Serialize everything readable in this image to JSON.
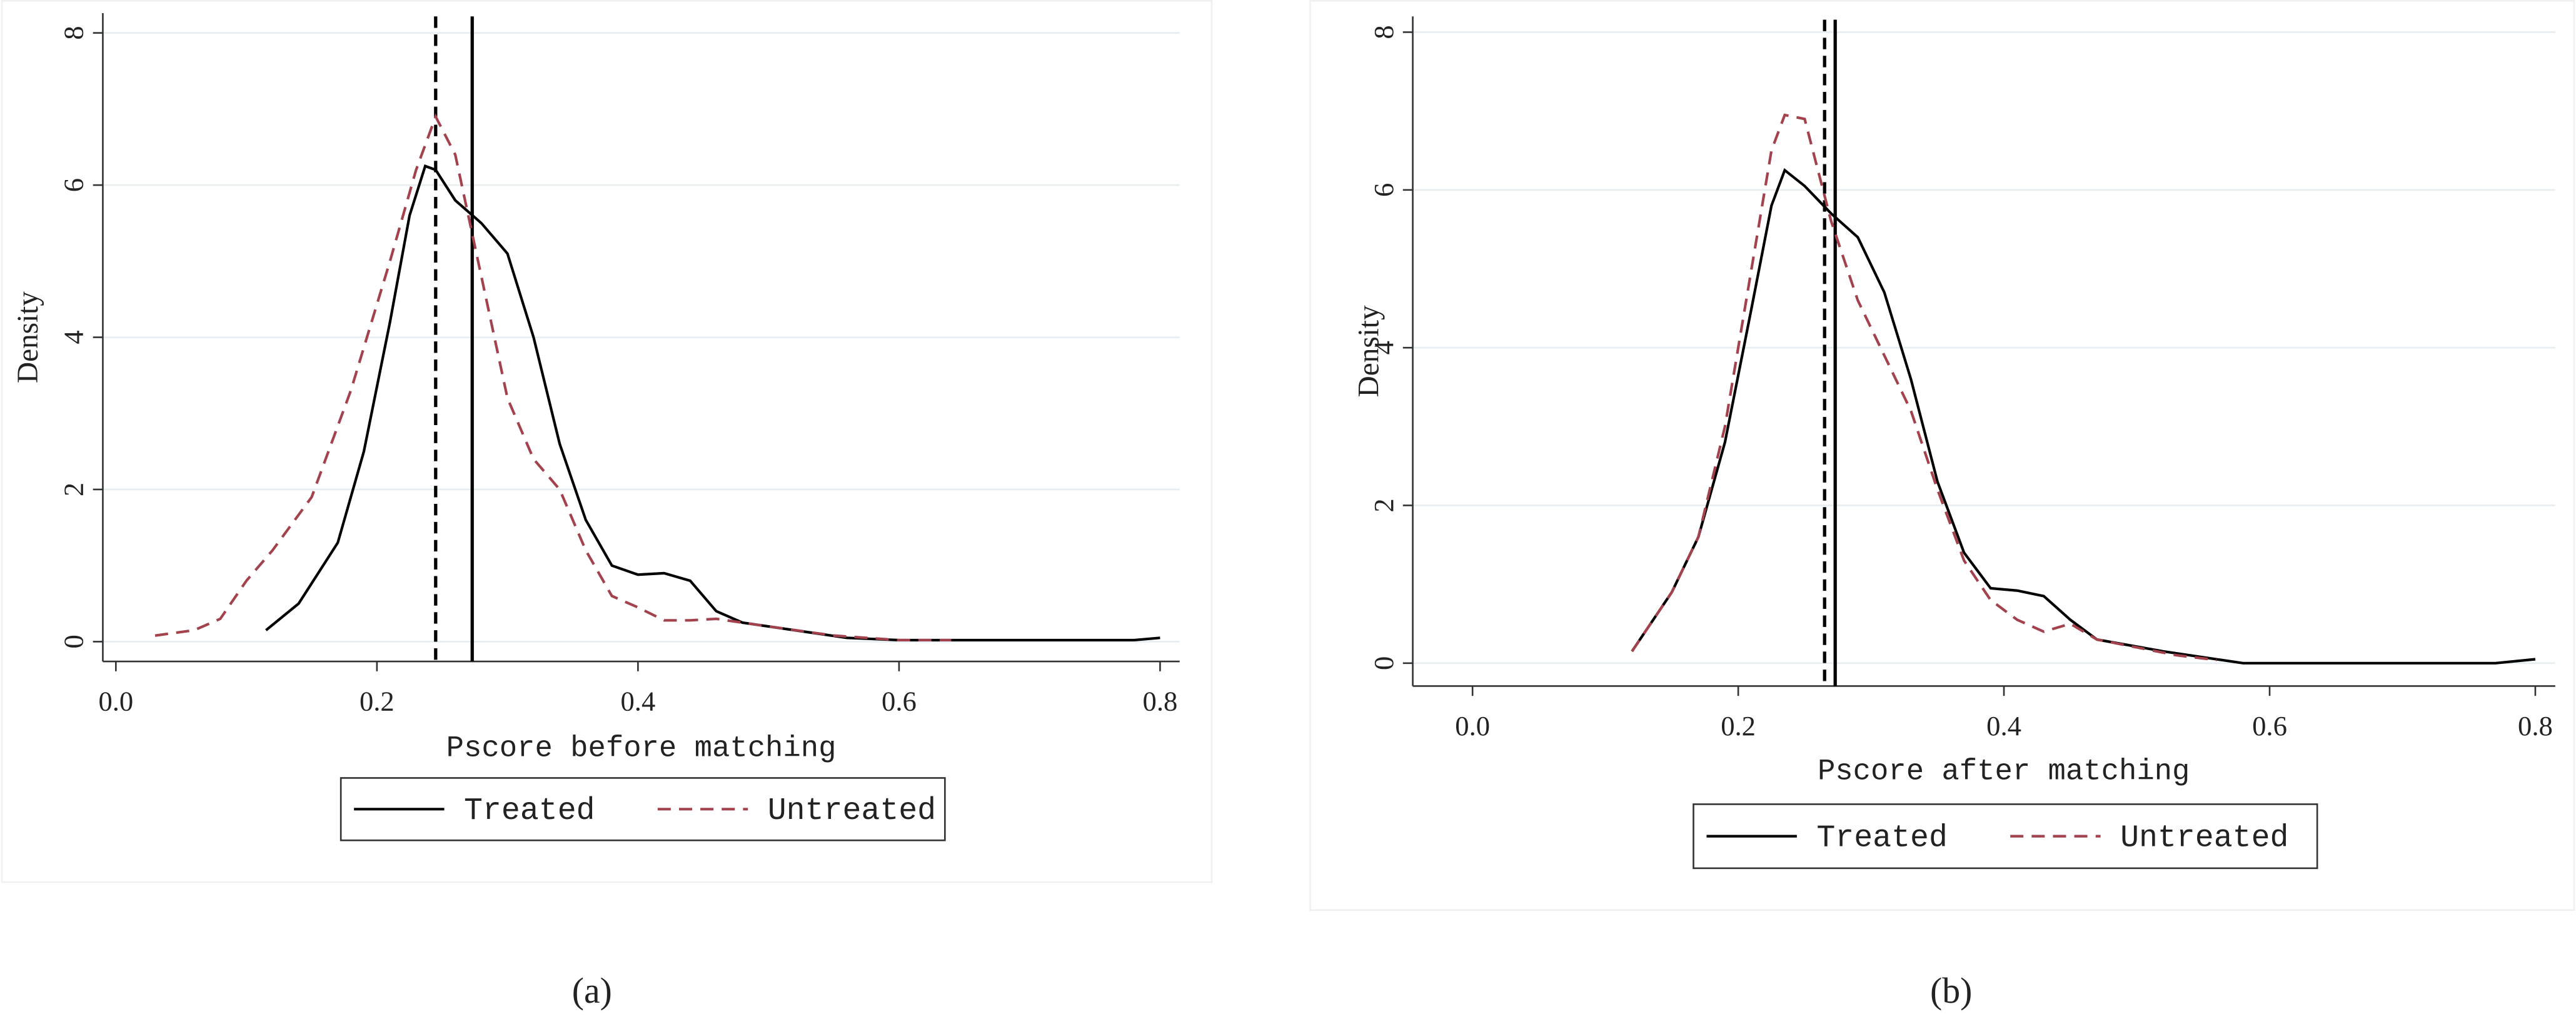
{
  "chart_data": [
    {
      "type": "line",
      "xlabel": "Pscore before matching",
      "ylabel": "Density",
      "caption": "(a)",
      "xlim": [
        -0.01,
        0.815
      ],
      "ylim": [
        -0.26,
        8.26
      ],
      "xticks": [
        {
          "value": 0,
          "label": "0.0"
        },
        0.2,
        0.4,
        0.6,
        0.8
      ],
      "yticks": [
        0,
        2,
        4,
        6,
        8
      ],
      "grid": true,
      "reference_lines": [
        {
          "x": 0.245,
          "style": "dashed"
        },
        {
          "x": 0.273,
          "style": "solid"
        }
      ],
      "series": [
        {
          "name": "Treated",
          "color": "#000000",
          "style": "solid",
          "x": [
            0.115,
            0.14,
            0.17,
            0.19,
            0.21,
            0.225,
            0.237,
            0.245,
            0.26,
            0.28,
            0.3,
            0.32,
            0.34,
            0.36,
            0.38,
            0.4,
            0.42,
            0.44,
            0.46,
            0.48,
            0.52,
            0.56,
            0.6,
            0.7,
            0.78,
            0.8
          ],
          "values": [
            0.15,
            0.5,
            1.3,
            2.5,
            4.2,
            5.6,
            6.25,
            6.2,
            5.8,
            5.5,
            5.1,
            4.0,
            2.6,
            1.6,
            1.0,
            0.88,
            0.9,
            0.8,
            0.4,
            0.25,
            0.15,
            0.05,
            0.02,
            0.02,
            0.02,
            0.05
          ]
        },
        {
          "name": "Untreated",
          "color": "#a3424c",
          "style": "dashed",
          "x": [
            0.03,
            0.06,
            0.08,
            0.1,
            0.12,
            0.15,
            0.18,
            0.21,
            0.23,
            0.245,
            0.26,
            0.28,
            0.3,
            0.32,
            0.34,
            0.36,
            0.38,
            0.4,
            0.42,
            0.44,
            0.46,
            0.5,
            0.55,
            0.6,
            0.64
          ],
          "values": [
            0.08,
            0.15,
            0.3,
            0.8,
            1.2,
            1.9,
            3.3,
            5.0,
            6.2,
            6.9,
            6.4,
            4.8,
            3.2,
            2.4,
            2.0,
            1.2,
            0.6,
            0.45,
            0.28,
            0.28,
            0.3,
            0.2,
            0.08,
            0.02,
            0.02
          ]
        }
      ]
    },
    {
      "type": "line",
      "xlabel": "Pscore after matching",
      "ylabel": "Density",
      "caption": "(b)",
      "xlim": [
        -0.045,
        0.815
      ],
      "ylim": [
        -0.29,
        8.2
      ],
      "xticks": [
        {
          "value": 0,
          "label": "0.0"
        },
        0.2,
        0.4,
        0.6,
        0.8
      ],
      "yticks": [
        0,
        2,
        4,
        6,
        8
      ],
      "grid": true,
      "reference_lines": [
        {
          "x": 0.265,
          "style": "dashed"
        },
        {
          "x": 0.273,
          "style": "solid"
        }
      ],
      "series": [
        {
          "name": "Treated",
          "color": "#000000",
          "style": "solid",
          "x": [
            0.12,
            0.15,
            0.17,
            0.19,
            0.21,
            0.225,
            0.235,
            0.25,
            0.27,
            0.29,
            0.31,
            0.33,
            0.35,
            0.37,
            0.39,
            0.41,
            0.43,
            0.45,
            0.47,
            0.52,
            0.56,
            0.58,
            0.7,
            0.77,
            0.8
          ],
          "values": [
            0.15,
            0.9,
            1.6,
            2.8,
            4.5,
            5.8,
            6.25,
            6.05,
            5.7,
            5.4,
            4.7,
            3.6,
            2.3,
            1.4,
            0.95,
            0.92,
            0.85,
            0.55,
            0.3,
            0.15,
            0.05,
            0.0,
            0.0,
            0.0,
            0.05
          ]
        },
        {
          "name": "Untreated",
          "color": "#a3424c",
          "style": "dashed",
          "x": [
            0.12,
            0.15,
            0.17,
            0.19,
            0.21,
            0.225,
            0.235,
            0.25,
            0.27,
            0.29,
            0.31,
            0.33,
            0.35,
            0.37,
            0.39,
            0.41,
            0.43,
            0.45,
            0.47,
            0.5,
            0.53,
            0.56
          ],
          "values": [
            0.15,
            0.9,
            1.6,
            3.0,
            5.0,
            6.5,
            6.95,
            6.9,
            5.6,
            4.6,
            3.9,
            3.2,
            2.2,
            1.3,
            0.8,
            0.55,
            0.4,
            0.5,
            0.3,
            0.2,
            0.1,
            0.04
          ]
        }
      ]
    }
  ]
}
